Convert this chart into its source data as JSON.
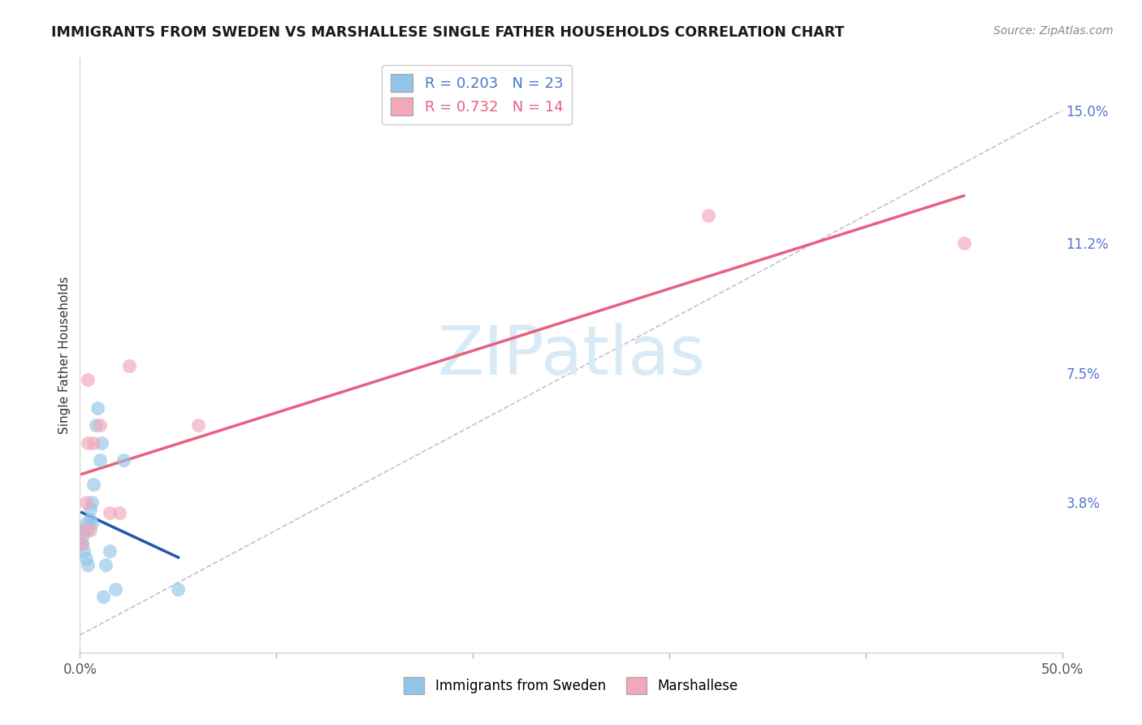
{
  "title": "IMMIGRANTS FROM SWEDEN VS MARSHALLESE SINGLE FATHER HOUSEHOLDS CORRELATION CHART",
  "source": "Source: ZipAtlas.com",
  "ylabel": "Single Father Households",
  "xlim": [
    0.0,
    0.5
  ],
  "ylim": [
    -0.005,
    0.165
  ],
  "xtick_vals": [
    0.0,
    0.1,
    0.2,
    0.3,
    0.4,
    0.5
  ],
  "xtick_labels": [
    "0.0%",
    "",
    "",
    "",
    "",
    "50.0%"
  ],
  "ytick_vals": [
    0.0,
    0.038,
    0.075,
    0.112,
    0.15
  ],
  "ytick_labels": [
    "",
    "3.8%",
    "7.5%",
    "11.2%",
    "15.0%"
  ],
  "sweden_color": "#92C5E8",
  "marshallese_color": "#F4A7B9",
  "sweden_line_color": "#2255AA",
  "marshallese_line_color": "#E86080",
  "sweden_R": 0.203,
  "sweden_N": 23,
  "marshallese_R": 0.732,
  "marshallese_N": 14,
  "watermark_text": "ZIPatlas",
  "watermark_color": "#D8EAF5",
  "background_color": "#ffffff",
  "grid_color": "#cccccc",
  "diag_color": "#BBBBCC",
  "sweden_x": [
    0.001,
    0.001,
    0.002,
    0.002,
    0.003,
    0.003,
    0.004,
    0.004,
    0.005,
    0.005,
    0.006,
    0.006,
    0.007,
    0.008,
    0.009,
    0.01,
    0.011,
    0.013,
    0.015,
    0.018,
    0.022,
    0.05,
    0.012
  ],
  "sweden_y": [
    0.026,
    0.028,
    0.03,
    0.024,
    0.032,
    0.022,
    0.03,
    0.02,
    0.036,
    0.033,
    0.038,
    0.032,
    0.043,
    0.06,
    0.065,
    0.05,
    0.055,
    0.02,
    0.024,
    0.013,
    0.05,
    0.013,
    0.011
  ],
  "marshallese_x": [
    0.001,
    0.002,
    0.003,
    0.004,
    0.004,
    0.005,
    0.007,
    0.01,
    0.015,
    0.02,
    0.025,
    0.06,
    0.32,
    0.45
  ],
  "marshallese_y": [
    0.026,
    0.03,
    0.038,
    0.073,
    0.055,
    0.03,
    0.055,
    0.06,
    0.035,
    0.035,
    0.077,
    0.06,
    0.12,
    0.112
  ]
}
